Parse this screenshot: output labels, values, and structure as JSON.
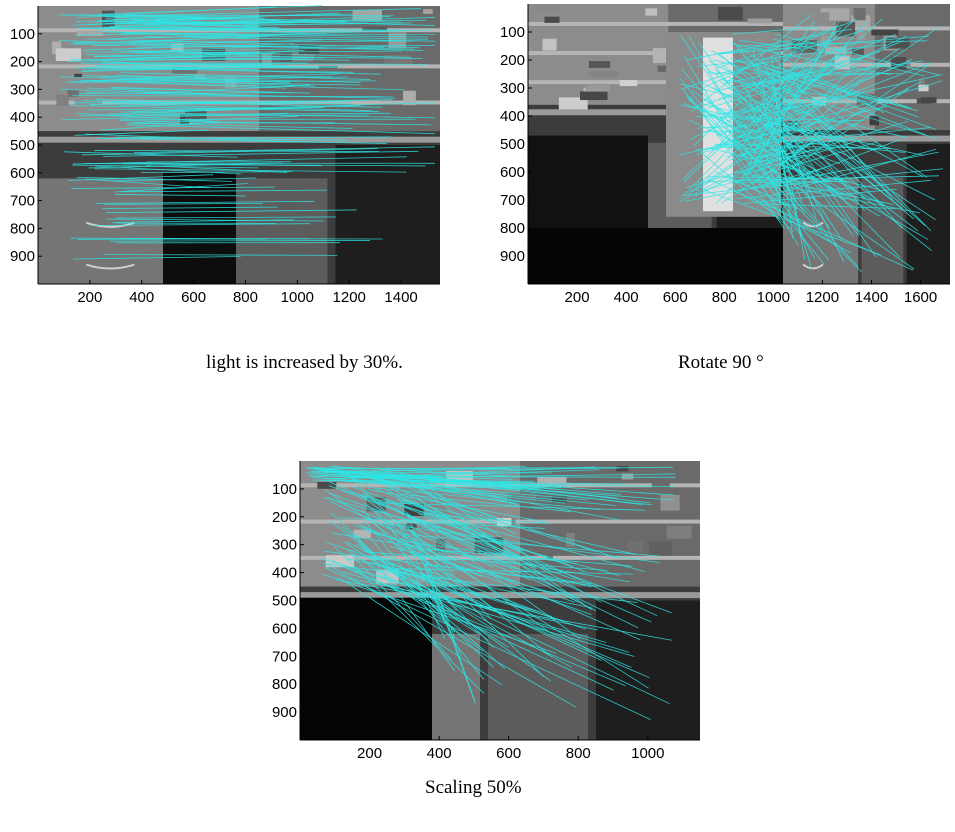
{
  "figures": [
    {
      "id": "light",
      "caption": "light is increased by 30%.",
      "x_ticks": [
        "200",
        "400",
        "600",
        "800",
        "1000",
        "1200",
        "1400"
      ],
      "y_ticks": [
        "100",
        "200",
        "300",
        "400",
        "500",
        "600",
        "700",
        "800",
        "900"
      ]
    },
    {
      "id": "rotate",
      "caption": "Rotate 90 °",
      "x_ticks": [
        "200",
        "400",
        "600",
        "800",
        "1000",
        "1200",
        "1400",
        "1600"
      ],
      "y_ticks": [
        "100",
        "200",
        "300",
        "400",
        "500",
        "600",
        "700",
        "800",
        "900"
      ]
    },
    {
      "id": "scale",
      "caption": "Scaling 50%",
      "x_ticks": [
        "200",
        "400",
        "600",
        "800",
        "1000"
      ],
      "y_ticks": [
        "100",
        "200",
        "300",
        "400",
        "500",
        "600",
        "700",
        "800",
        "900"
      ]
    }
  ],
  "colors": {
    "match_line": "#2ee6e6",
    "photo_dark": "#1a1a1a",
    "photo_mid": "#7a7a7a"
  }
}
